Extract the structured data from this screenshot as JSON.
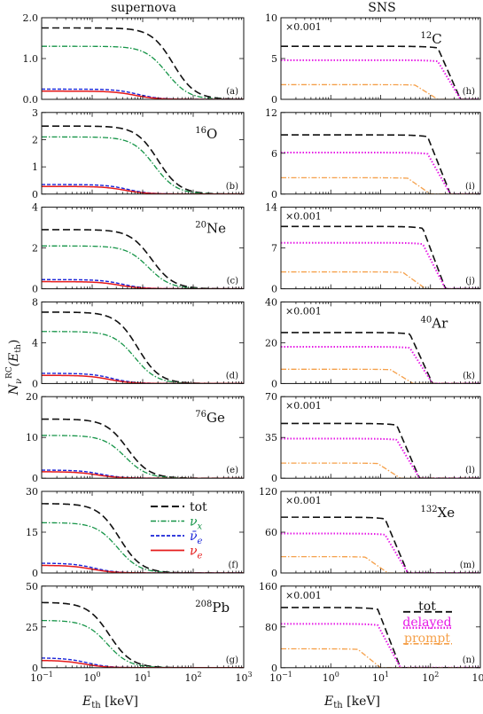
{
  "figure": {
    "col_titles": [
      "supernova",
      "SNS"
    ],
    "ylabel_main": "N",
    "ylabel_sub": "ν",
    "ylabel_sup": "RC",
    "ylabel_arg": "(E",
    "ylabel_arg_sub": "th",
    "ylabel_arg_close": ")",
    "xlabel_main": "E",
    "xlabel_sub": "th",
    "xlabel_unit": " [keV]",
    "x_ticks": [
      {
        "base": "10",
        "exp": "−1"
      },
      {
        "base": "10",
        "exp": "0"
      },
      {
        "base": "10",
        "exp": "1"
      },
      {
        "base": "10",
        "exp": "2"
      },
      {
        "base": "10",
        "exp": "3"
      }
    ]
  },
  "chart_data": [
    {
      "panel": "a",
      "column": "supernova",
      "type": "line",
      "x_scale": "log",
      "xlim": [
        0.1,
        1000
      ],
      "ylim": [
        0,
        2
      ],
      "yticks": [
        "0.0",
        "1.0",
        "2.0"
      ],
      "nucleus": "",
      "multiplier": "",
      "series": [
        {
          "name": "tot",
          "plateau": 1.75,
          "half": 40,
          "style": "tot"
        },
        {
          "name": "νx",
          "plateau": 1.3,
          "half": 30,
          "style": "nux"
        },
        {
          "name": "ν̄e",
          "plateau": 0.25,
          "half": 8,
          "style": "nubar"
        },
        {
          "name": "νe",
          "plateau": 0.2,
          "half": 7,
          "style": "nue"
        }
      ]
    },
    {
      "panel": "b",
      "column": "supernova",
      "type": "line",
      "x_scale": "log",
      "xlim": [
        0.1,
        1000
      ],
      "ylim": [
        0,
        3
      ],
      "yticks": [
        "0",
        "1",
        "2",
        "3"
      ],
      "nucleus": {
        "A": "16",
        "el": "O"
      },
      "multiplier": "",
      "series": [
        {
          "name": "tot",
          "plateau": 2.5,
          "half": 20,
          "style": "tot"
        },
        {
          "name": "νx",
          "plateau": 2.1,
          "half": 17,
          "style": "nux"
        },
        {
          "name": "ν̄e",
          "plateau": 0.35,
          "half": 5,
          "style": "nubar"
        },
        {
          "name": "νe",
          "plateau": 0.28,
          "half": 4.5,
          "style": "nue"
        }
      ]
    },
    {
      "panel": "c",
      "column": "supernova",
      "type": "line",
      "x_scale": "log",
      "xlim": [
        0.1,
        1000
      ],
      "ylim": [
        0,
        4
      ],
      "yticks": [
        "0",
        "2",
        "4"
      ],
      "nucleus": {
        "A": "20",
        "el": "Ne"
      },
      "multiplier": "",
      "series": [
        {
          "name": "tot",
          "plateau": 2.9,
          "half": 15,
          "style": "tot"
        },
        {
          "name": "νx",
          "plateau": 2.1,
          "half": 13,
          "style": "nux"
        },
        {
          "name": "ν̄e",
          "plateau": 0.45,
          "half": 4,
          "style": "nubar"
        },
        {
          "name": "νe",
          "plateau": 0.35,
          "half": 3.5,
          "style": "nue"
        }
      ]
    },
    {
      "panel": "d",
      "column": "supernova",
      "type": "line",
      "x_scale": "log",
      "xlim": [
        0.1,
        1000
      ],
      "ylim": [
        0,
        8
      ],
      "yticks": [
        "0",
        "4",
        "8"
      ],
      "nucleus": "",
      "multiplier": "",
      "series": [
        {
          "name": "tot",
          "plateau": 7.0,
          "half": 8,
          "style": "tot"
        },
        {
          "name": "νx",
          "plateau": 5.1,
          "half": 7,
          "style": "nux"
        },
        {
          "name": "ν̄e",
          "plateau": 1.0,
          "half": 2.5,
          "style": "nubar"
        },
        {
          "name": "νe",
          "plateau": 0.8,
          "half": 2.2,
          "style": "nue"
        }
      ]
    },
    {
      "panel": "e",
      "column": "supernova",
      "type": "line",
      "x_scale": "log",
      "xlim": [
        0.1,
        1000
      ],
      "ylim": [
        0,
        20
      ],
      "yticks": [
        "0",
        "10",
        "20"
      ],
      "nucleus": {
        "A": "76",
        "el": "Ge"
      },
      "multiplier": "",
      "series": [
        {
          "name": "tot",
          "plateau": 14.5,
          "half": 5,
          "style": "tot"
        },
        {
          "name": "νx",
          "plateau": 10.5,
          "half": 4.5,
          "style": "nux"
        },
        {
          "name": "ν̄e",
          "plateau": 2.0,
          "half": 1.5,
          "style": "nubar"
        },
        {
          "name": "νe",
          "plateau": 1.6,
          "half": 1.3,
          "style": "nue"
        }
      ]
    },
    {
      "panel": "f",
      "column": "supernova",
      "type": "line",
      "x_scale": "log",
      "xlim": [
        0.1,
        1000
      ],
      "ylim": [
        0,
        30
      ],
      "yticks": [
        "0",
        "15",
        "30"
      ],
      "nucleus": "",
      "multiplier": "",
      "series": [
        {
          "name": "tot",
          "plateau": 25.5,
          "half": 3.5,
          "style": "tot"
        },
        {
          "name": "νx",
          "plateau": 18.5,
          "half": 3.2,
          "style": "nux"
        },
        {
          "name": "ν̄e",
          "plateau": 3.6,
          "half": 1.1,
          "style": "nubar"
        },
        {
          "name": "νe",
          "plateau": 2.8,
          "half": 1.0,
          "style": "nue"
        }
      ]
    },
    {
      "panel": "g",
      "column": "supernova",
      "type": "line",
      "x_scale": "log",
      "xlim": [
        0.1,
        1000
      ],
      "ylim": [
        0,
        50
      ],
      "yticks": [
        "0",
        "25",
        "50"
      ],
      "nucleus": {
        "A": "208",
        "el": "Pb"
      },
      "multiplier": "",
      "series": [
        {
          "name": "tot",
          "plateau": 40,
          "half": 2.2,
          "style": "tot"
        },
        {
          "name": "νx",
          "plateau": 29,
          "half": 2.0,
          "style": "nux"
        },
        {
          "name": "ν̄e",
          "plateau": 6,
          "half": 0.8,
          "style": "nubar"
        },
        {
          "name": "νe",
          "plateau": 4.5,
          "half": 0.7,
          "style": "nue"
        }
      ]
    },
    {
      "panel": "h",
      "column": "SNS",
      "type": "line",
      "x_scale": "log",
      "xlim": [
        0.1,
        1000
      ],
      "ylim": [
        0,
        10
      ],
      "yticks": [
        "0",
        "5",
        "10"
      ],
      "nucleus": {
        "A": "12",
        "el": "C"
      },
      "multiplier": "×0.001",
      "series": [
        {
          "name": "tot",
          "plateau": 6.5,
          "end": 400,
          "style": "tot"
        },
        {
          "name": "delayed",
          "plateau": 4.8,
          "end": 400,
          "style": "delayed"
        },
        {
          "name": "prompt",
          "plateau": 1.8,
          "end": 140,
          "style": "prompt"
        }
      ]
    },
    {
      "panel": "i",
      "column": "SNS",
      "type": "line",
      "x_scale": "log",
      "xlim": [
        0.1,
        1000
      ],
      "ylim": [
        0,
        12
      ],
      "yticks": [
        "0",
        "6",
        "12"
      ],
      "nucleus": "",
      "multiplier": "",
      "series": [
        {
          "name": "tot",
          "plateau": 8.7,
          "end": 250,
          "style": "tot"
        },
        {
          "name": "delayed",
          "plateau": 6.1,
          "end": 250,
          "style": "delayed"
        },
        {
          "name": "prompt",
          "plateau": 2.4,
          "end": 100,
          "style": "prompt"
        }
      ]
    },
    {
      "panel": "j",
      "column": "SNS",
      "type": "line",
      "x_scale": "log",
      "xlim": [
        0.1,
        1000
      ],
      "ylim": [
        0,
        14
      ],
      "yticks": [
        "0",
        "7",
        "14"
      ],
      "nucleus": "",
      "multiplier": "×0.001",
      "series": [
        {
          "name": "tot",
          "plateau": 10.7,
          "end": 200,
          "style": "tot"
        },
        {
          "name": "delayed",
          "plateau": 7.9,
          "end": 200,
          "style": "delayed"
        },
        {
          "name": "prompt",
          "plateau": 2.9,
          "end": 80,
          "style": "prompt"
        }
      ]
    },
    {
      "panel": "k",
      "column": "SNS",
      "type": "line",
      "x_scale": "log",
      "xlim": [
        0.1,
        1000
      ],
      "ylim": [
        0,
        40
      ],
      "yticks": [
        "0",
        "20",
        "40"
      ],
      "nucleus": {
        "A": "40",
        "el": "Ar"
      },
      "multiplier": "×0.001",
      "series": [
        {
          "name": "tot",
          "plateau": 25,
          "end": 110,
          "style": "tot"
        },
        {
          "name": "delayed",
          "plateau": 18,
          "end": 110,
          "style": "delayed"
        },
        {
          "name": "prompt",
          "plateau": 7,
          "end": 45,
          "style": "prompt"
        }
      ]
    },
    {
      "panel": "l",
      "column": "SNS",
      "type": "line",
      "x_scale": "log",
      "xlim": [
        0.1,
        1000
      ],
      "ylim": [
        0,
        70
      ],
      "yticks": [
        "0",
        "35",
        "70"
      ],
      "nucleus": "",
      "multiplier": "×0.001",
      "series": [
        {
          "name": "tot",
          "plateau": 47,
          "end": 60,
          "style": "tot"
        },
        {
          "name": "delayed",
          "plateau": 34,
          "end": 60,
          "style": "delayed"
        },
        {
          "name": "prompt",
          "plateau": 13,
          "end": 25,
          "style": "prompt"
        }
      ]
    },
    {
      "panel": "m",
      "column": "SNS",
      "type": "line",
      "x_scale": "log",
      "xlim": [
        0.1,
        1000
      ],
      "ylim": [
        0,
        120
      ],
      "yticks": [
        "0",
        "60",
        "120"
      ],
      "nucleus": {
        "A": "132",
        "el": "Xe"
      },
      "multiplier": "×0.001",
      "series": [
        {
          "name": "tot",
          "plateau": 82,
          "end": 35,
          "style": "tot"
        },
        {
          "name": "delayed",
          "plateau": 58,
          "end": 35,
          "style": "delayed"
        },
        {
          "name": "prompt",
          "plateau": 24,
          "end": 14,
          "style": "prompt"
        }
      ]
    },
    {
      "panel": "n",
      "column": "SNS",
      "type": "line",
      "x_scale": "log",
      "xlim": [
        0.1,
        1000
      ],
      "ylim": [
        0,
        160
      ],
      "yticks": [
        "0",
        "80",
        "160"
      ],
      "nucleus": "",
      "multiplier": "×0.001",
      "series": [
        {
          "name": "tot",
          "plateau": 118,
          "end": 25,
          "style": "tot"
        },
        {
          "name": "delayed",
          "plateau": 86,
          "end": 25,
          "style": "delayed"
        },
        {
          "name": "prompt",
          "plateau": 37,
          "end": 10,
          "style": "prompt"
        }
      ]
    }
  ],
  "legends": {
    "supernova": {
      "panel": "f",
      "items": [
        {
          "style": "tot",
          "label": "tot"
        },
        {
          "style": "nux",
          "label": "ν",
          "sub": "x"
        },
        {
          "style": "nubar",
          "label": "ν̄",
          "sub": "e"
        },
        {
          "style": "nue",
          "label": "ν",
          "sub": "e"
        }
      ]
    },
    "sns": {
      "panel": "n",
      "items": [
        {
          "style": "tot",
          "label": "tot"
        },
        {
          "style": "delayed",
          "label": "delayed"
        },
        {
          "style": "prompt",
          "label": "prompt"
        }
      ]
    }
  },
  "styles": {
    "tot": {
      "color": "#111111",
      "dash": "8,4",
      "width": 1.6
    },
    "nux": {
      "color": "#159447",
      "dash": "6,2,1.5,2",
      "width": 1.3
    },
    "nubar": {
      "color": "#1a24d8",
      "dash": "4,2",
      "width": 1.4
    },
    "nue": {
      "color": "#e51b1b",
      "dash": "",
      "width": 1.5
    },
    "delayed": {
      "color": "#e619e6",
      "dash": "1.5,2",
      "width": 2.0
    },
    "prompt": {
      "color": "#f5a04a",
      "dash": "6,2,1.5,2",
      "width": 1.3
    }
  }
}
